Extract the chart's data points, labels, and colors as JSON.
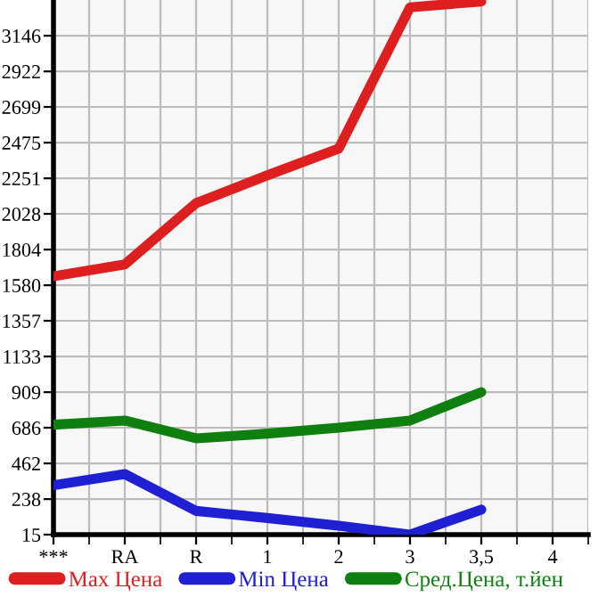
{
  "chart_data": {
    "type": "line",
    "categories": [
      "***",
      "RA",
      "R",
      "1",
      "2",
      "3",
      "3,5",
      "4"
    ],
    "series": [
      {
        "name": "Max Цена",
        "color": "#dd1f1f",
        "values": [
          1636,
          1711,
          2095,
          2270,
          2438,
          3324,
          3361,
          null
        ]
      },
      {
        "name": "Min Цена",
        "color": "#1f1fd4",
        "values": [
          325,
          395,
          164,
          119,
          71,
          15,
          172,
          null
        ]
      },
      {
        "name": "Сред.Цена, т.йен",
        "color": "#0f7f0f",
        "values": [
          705,
          731,
          619,
          649,
          686,
          731,
          909,
          null
        ]
      }
    ],
    "ylim": [
      15,
      3370
    ],
    "yticks": [
      15,
      238,
      462,
      686,
      909,
      1133,
      1357,
      1580,
      1804,
      2028,
      2251,
      2475,
      2699,
      2922,
      3146
    ],
    "grid": true,
    "legend": "bottom",
    "marker": "none",
    "line_style": "solid"
  }
}
